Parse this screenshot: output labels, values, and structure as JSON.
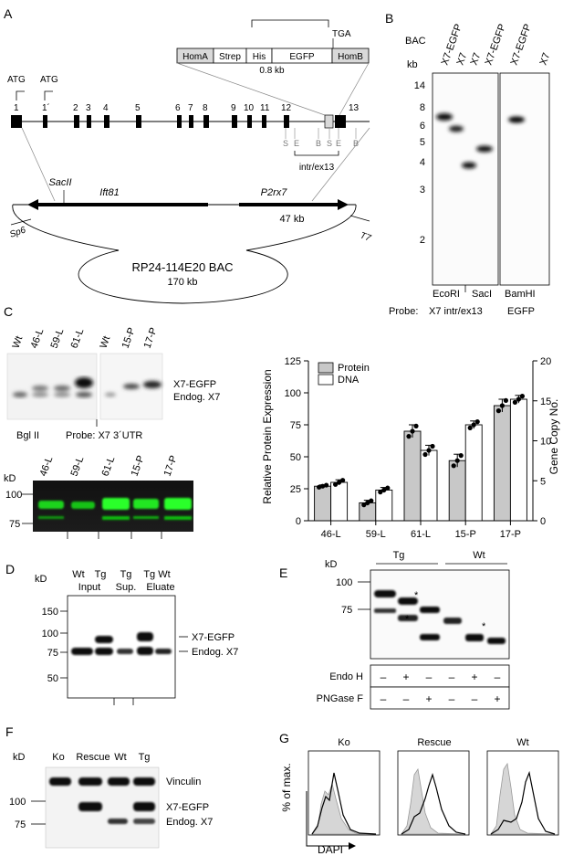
{
  "panelA": {
    "letter": "A",
    "construct": {
      "homA": "HomA",
      "strep": "Strep",
      "his": "His",
      "egfp": "EGFP",
      "homB": "HomB",
      "size": "0.8 kb",
      "stop": "TGA"
    },
    "atg1": "ATG",
    "atg2": "ATG",
    "exons": [
      "1",
      "1´",
      "2",
      "3",
      "4",
      "5",
      "6",
      "7",
      "8",
      "9",
      "10",
      "11",
      "12",
      "13"
    ],
    "sites": [
      "S",
      "E",
      "B",
      "S",
      "E",
      "B"
    ],
    "probe_label": "intr/ex13",
    "gene1": "Ift81",
    "gene2": "P2rx7",
    "sac": "SacII",
    "gene_size": "47 kb",
    "sp6": "Sp6",
    "t7": "T7",
    "bac_name": "RP24-114E20 BAC",
    "bac_size": "170 kb"
  },
  "panelB": {
    "letter": "B",
    "bac": "BAC",
    "kb": "kb",
    "lanes": [
      "X7-EGFP",
      "X7",
      "X7",
      "X7-EGFP",
      "X7-EGFP",
      "X7"
    ],
    "markers": [
      "14",
      "8",
      "6",
      "5",
      "4",
      "3",
      "2"
    ],
    "enzymes": [
      "EcoRI",
      "SacI",
      "BamHI"
    ],
    "probe_prefix": "Probe:",
    "probe1": "X7 intr/ex13",
    "probe2": "EGFP"
  },
  "panelC": {
    "letter": "C",
    "southern_lanes": [
      "Wt",
      "46-L",
      "59-L",
      "61-L",
      "Wt",
      "15-P",
      "17-P"
    ],
    "band_labels": [
      "X7-EGFP",
      "Endog. X7"
    ],
    "enzyme": "Bgl II",
    "probe": "Probe:  X7 3´UTR",
    "kd": "kD",
    "western_lanes": [
      "46-L",
      "59-L",
      "61-L",
      "15-P",
      "17-P"
    ],
    "western_markers": [
      "100",
      "75"
    ]
  },
  "chart_data": {
    "type": "bar",
    "categories": [
      "46-L",
      "59-L",
      "61-L",
      "15-P",
      "17-P"
    ],
    "series": [
      {
        "name": "Protein",
        "values": [
          27,
          14,
          70,
          47,
          90
        ],
        "errors": [
          1,
          2,
          5,
          5,
          5
        ]
      },
      {
        "name": "DNA",
        "values": [
          30,
          24,
          55,
          75,
          95
        ],
        "errors": [
          2,
          2,
          4,
          3,
          3
        ]
      }
    ],
    "ylabel": "Relative Protein Expression",
    "y2label": "Gene Copy No.",
    "ylim": [
      0,
      125
    ],
    "y2lim": [
      0,
      20
    ],
    "yticks": [
      0,
      25,
      50,
      75,
      100,
      125
    ],
    "y2ticks": [
      0,
      5,
      10,
      15,
      20
    ],
    "colors": {
      "Protein": "#c8c8c8",
      "DNA": "#ffffff"
    },
    "legend": "top-left"
  },
  "panelD": {
    "letter": "D",
    "kd": "kD",
    "lanes_top": [
      "Wt",
      "Tg",
      "Tg",
      "Tg Wt"
    ],
    "lanes_bottom": [
      "Input",
      "Sup.",
      "Eluate"
    ],
    "markers": [
      "150",
      "100",
      "75",
      "50"
    ],
    "bands": [
      "X7-EGFP",
      "Endog. X7"
    ]
  },
  "panelE": {
    "letter": "E",
    "kd": "kD",
    "groups": [
      "Tg",
      "Wt"
    ],
    "markers": [
      "100",
      "75"
    ],
    "rows": [
      {
        "label": "Endo H",
        "marks": [
          "–",
          "+",
          "–",
          "–",
          "+",
          "–"
        ]
      },
      {
        "label": "PNGase F",
        "marks": [
          "–",
          "–",
          "+",
          "–",
          "–",
          "+"
        ]
      }
    ],
    "star": "*"
  },
  "panelF": {
    "letter": "F",
    "kd": "kD",
    "lanes": [
      "Ko",
      "Rescue",
      "Wt",
      "Tg"
    ],
    "markers": [
      "100",
      "75"
    ],
    "bands": [
      "Vinculin",
      "X7-EGFP",
      "Endog. X7"
    ]
  },
  "panelG": {
    "letter": "G",
    "titles": [
      "Ko",
      "Rescue",
      "Wt"
    ],
    "ylabel": "% of max.",
    "xlabel": "DAPI"
  }
}
